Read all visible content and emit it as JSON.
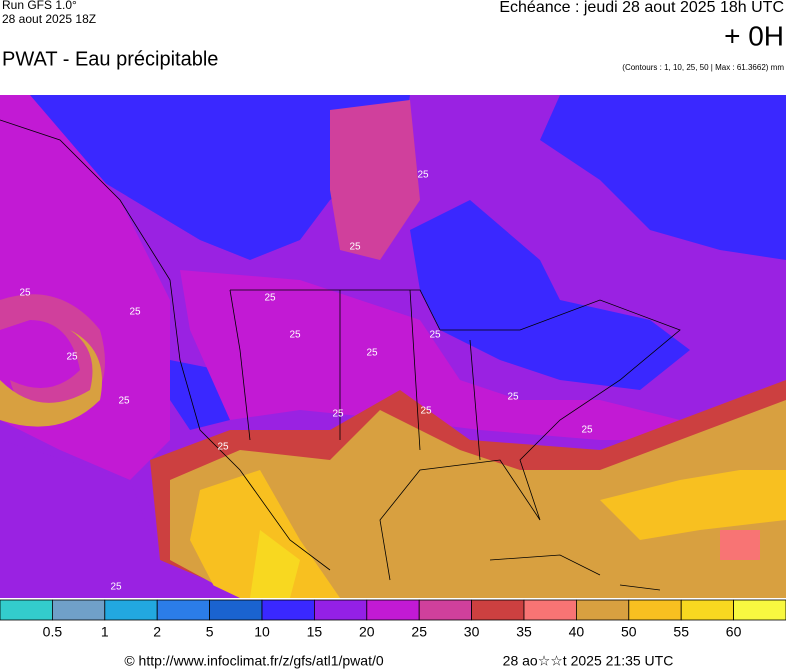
{
  "header": {
    "run": "Run GFS 1.0°",
    "run_date": "28 aout 2025 18Z",
    "title": "PWAT - Eau précipitable",
    "forecast": "Echéance : jeudi 28 aout 2025 18h UTC",
    "lead": "+ 0H",
    "contours": "(Contours : 1, 10, 25, 50 | Max : 61.3662) mm"
  },
  "map": {
    "contour_labels": [
      "25",
      "25",
      "25",
      "25",
      "25",
      "25",
      "25",
      "25",
      "25",
      "25",
      "25",
      "25",
      "25",
      "25",
      "25",
      "25"
    ]
  },
  "legend": {
    "colors": [
      "#33cccc",
      "#70a0c8",
      "#22a8e0",
      "#2b7de8",
      "#1a63d0",
      "#3a28ff",
      "#9420e6",
      "#c21ad4",
      "#d0409c",
      "#cc4040",
      "#f87474",
      "#d8a040",
      "#f8c020",
      "#f8d820",
      "#f8f840"
    ],
    "labels": [
      0.5,
      1,
      2,
      5,
      10,
      15,
      20,
      25,
      30,
      35,
      40,
      50,
      55,
      60
    ]
  },
  "footer": {
    "source": "© http://www.infoclimat.fr/z/gfs/atl1/pwat/0",
    "timestamp": "28 ao☆☆t 2025 21:35 UTC"
  }
}
